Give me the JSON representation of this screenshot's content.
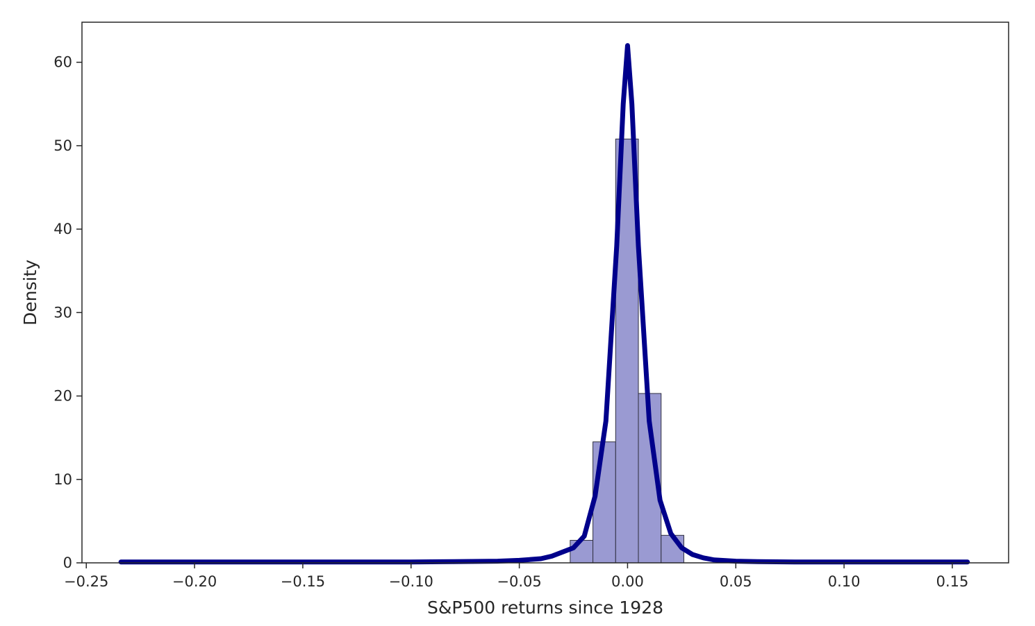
{
  "chart_data": {
    "type": "bar",
    "subtype": "histogram-with-density-line",
    "title": "",
    "xlabel": "S&P500 returns since 1928",
    "ylabel": "Density",
    "xlim": [
      -0.252,
      0.176
    ],
    "ylim": [
      0,
      64.8
    ],
    "grid": false,
    "legend": "none",
    "x_ticks": [
      -0.25,
      -0.2,
      -0.15,
      -0.1,
      -0.05,
      0.0,
      0.05,
      0.1,
      0.15
    ],
    "x_tick_labels": [
      "−0.25",
      "−0.20",
      "−0.15",
      "−0.10",
      "−0.05",
      "0.00",
      "0.05",
      "0.10",
      "0.15"
    ],
    "y_ticks": [
      0,
      10,
      20,
      30,
      40,
      50,
      60
    ],
    "y_tick_labels": [
      "0",
      "10",
      "20",
      "30",
      "40",
      "50",
      "60"
    ],
    "colors": {
      "bar_fill": "#9a9ad2",
      "bar_edge": "#2f2f3f",
      "line": "#00008b",
      "axis": "#262626"
    },
    "histogram": {
      "bin_edges": [
        -0.0265,
        -0.016,
        -0.0055,
        0.005,
        0.0155,
        0.026
      ],
      "values": [
        2.7,
        14.5,
        50.8,
        20.3,
        3.3
      ]
    },
    "density_line": {
      "x": [
        -0.234,
        -0.2,
        -0.15,
        -0.1,
        -0.08,
        -0.06,
        -0.05,
        -0.04,
        -0.035,
        -0.03,
        -0.025,
        -0.02,
        -0.015,
        -0.01,
        -0.005,
        -0.002,
        0.0,
        0.002,
        0.005,
        0.01,
        0.015,
        0.02,
        0.025,
        0.03,
        0.035,
        0.04,
        0.05,
        0.06,
        0.08,
        0.1,
        0.13,
        0.157
      ],
      "y": [
        0.1,
        0.1,
        0.1,
        0.1,
        0.15,
        0.2,
        0.3,
        0.5,
        0.8,
        1.3,
        1.8,
        3.2,
        8.0,
        17.0,
        38.0,
        55.0,
        62.0,
        55.0,
        38.0,
        17.0,
        7.5,
        3.5,
        1.8,
        1.0,
        0.6,
        0.35,
        0.2,
        0.15,
        0.1,
        0.1,
        0.1,
        0.1
      ]
    }
  }
}
